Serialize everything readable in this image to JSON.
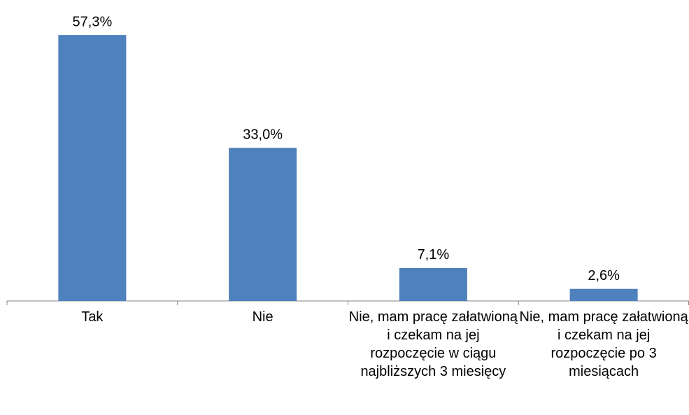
{
  "chart_data": {
    "type": "bar",
    "categories": [
      "Tak",
      "Nie",
      "Nie, mam pracę załatwioną i czekam na jej rozpoczęcie w ciągu najbliższych 3 miesięcy",
      "Nie, mam pracę załatwioną i czekam na jej rozpoczęcie po 3 miesiącach"
    ],
    "values": [
      57.3,
      33.0,
      7.1,
      2.6
    ],
    "value_labels": [
      "57,3%",
      "33,0%",
      "7,1%",
      "2,6%"
    ],
    "color": "#4f81bd"
  }
}
